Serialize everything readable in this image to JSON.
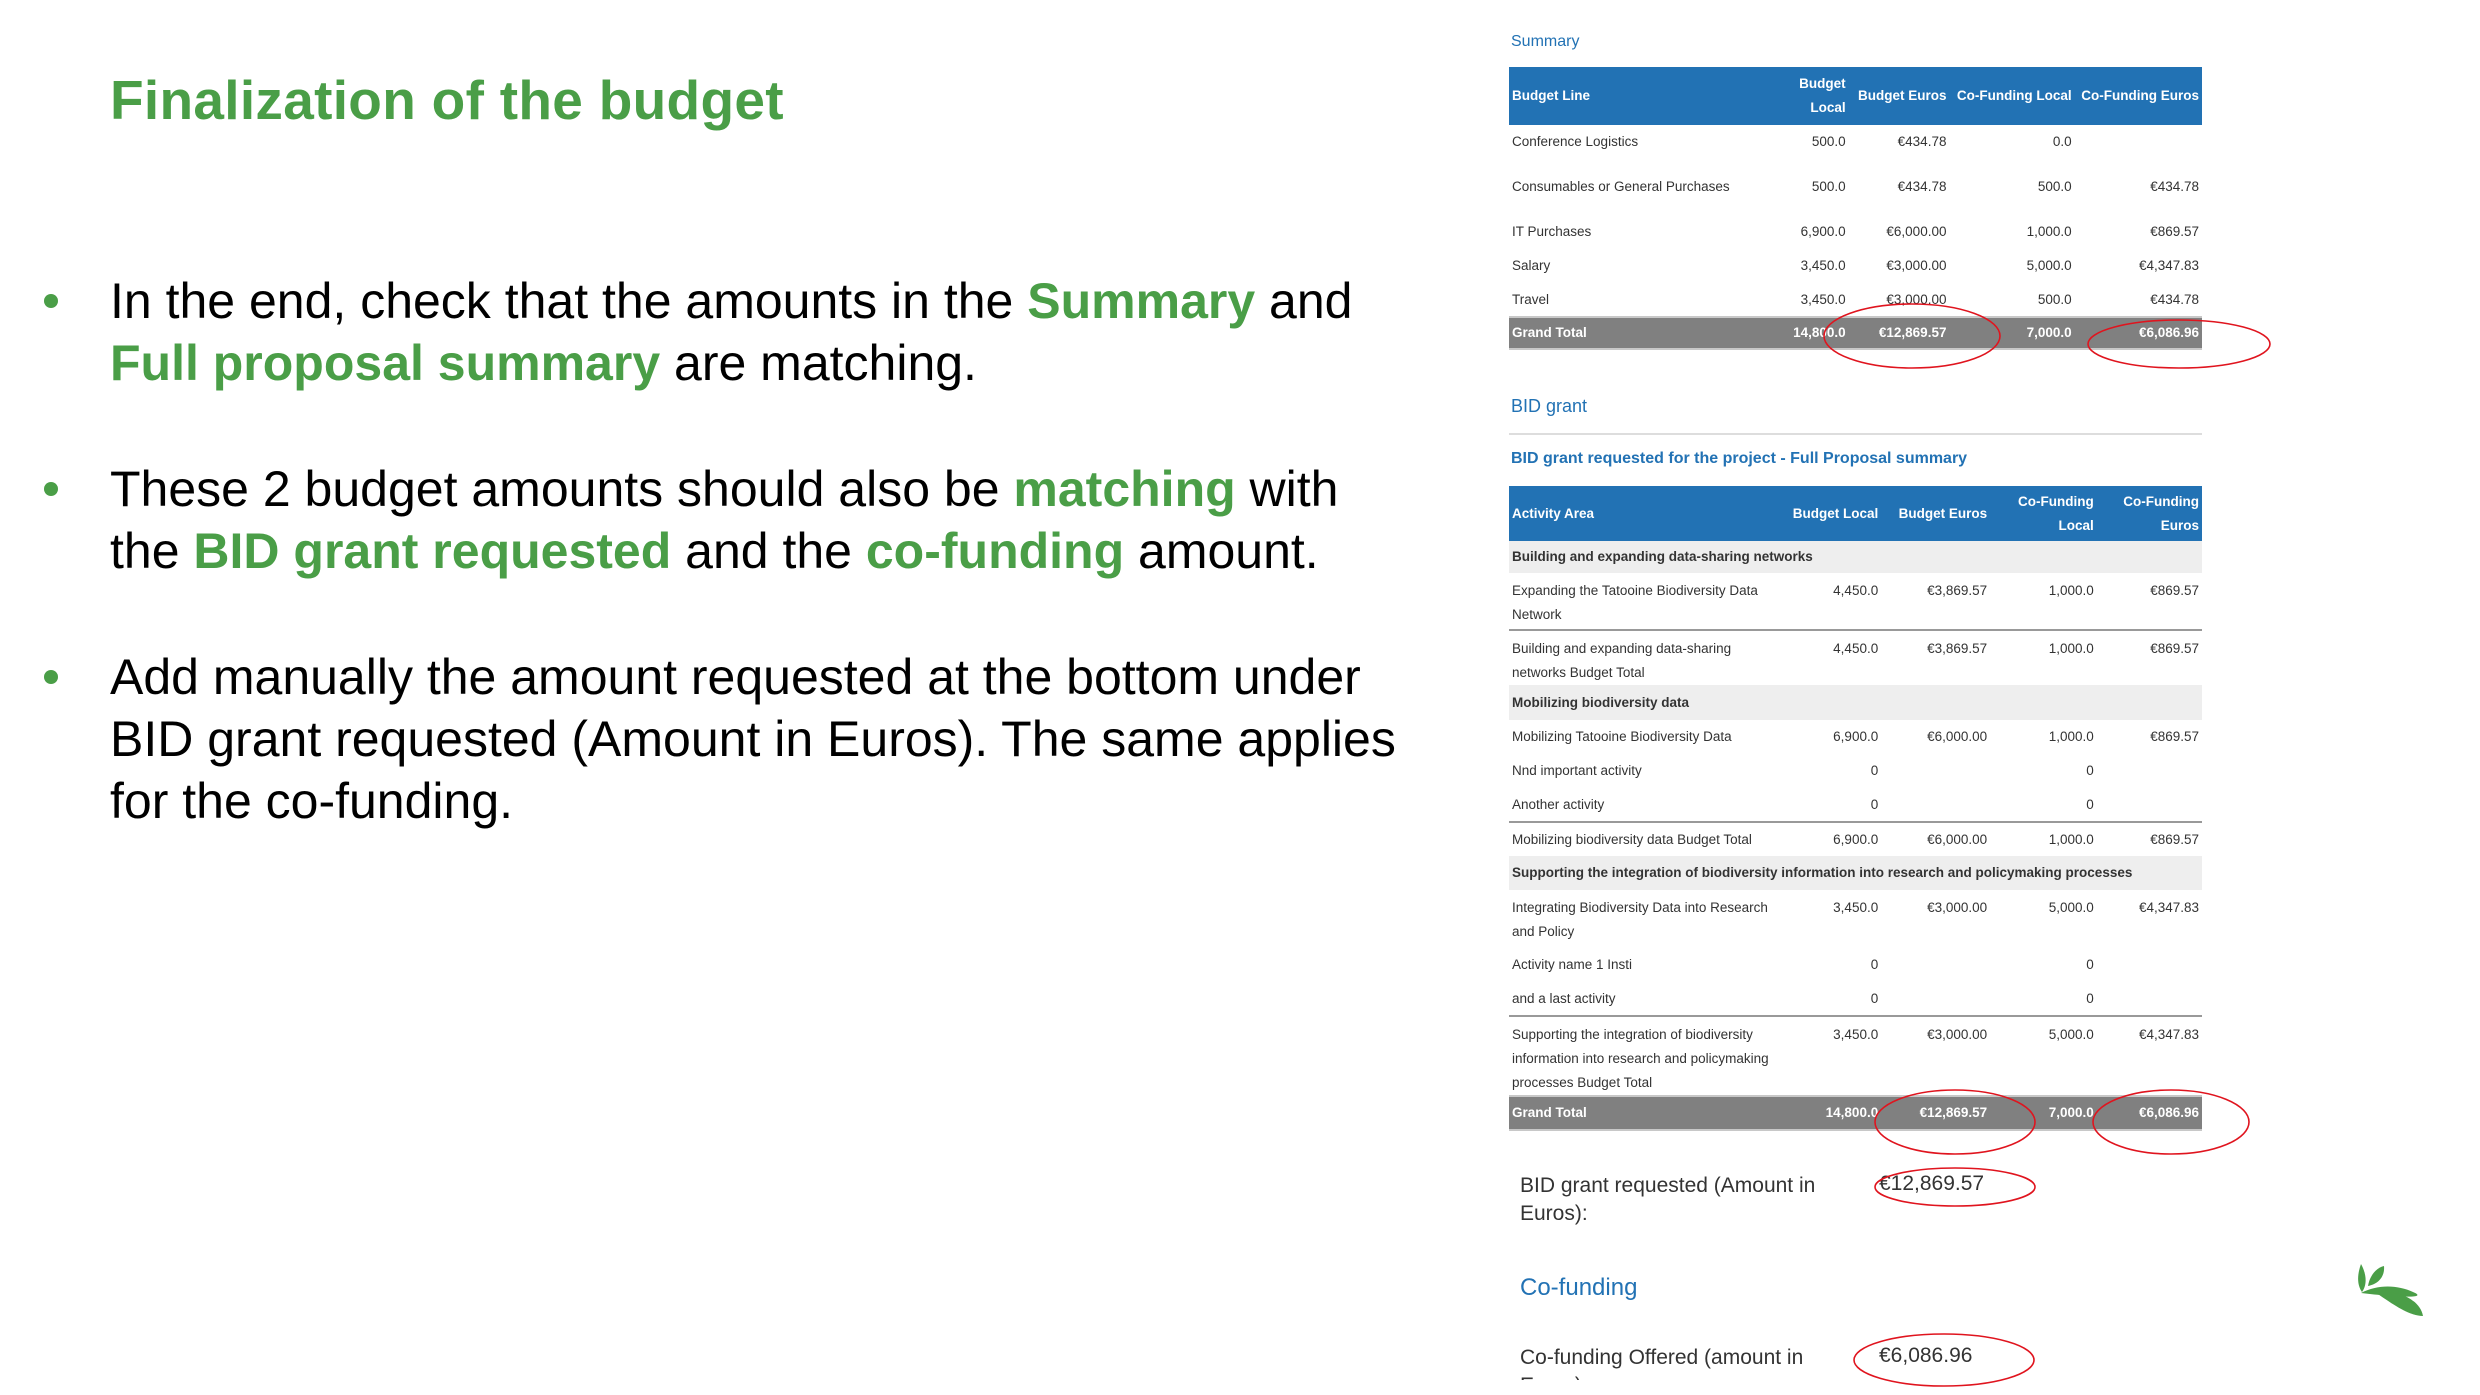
{
  "slide": {
    "title": "Finalization of the budget",
    "bullets": [
      [
        {
          "t": "In the end, check that the amounts in the "
        },
        {
          "t": "Summary",
          "em": true
        },
        {
          "t": " and "
        },
        {
          "t": "Full proposal summary",
          "em": true
        },
        {
          "t": " are matching."
        }
      ],
      [
        {
          "t": "These 2 budget amounts should also be "
        },
        {
          "t": "matching",
          "em": true
        },
        {
          "t": " with the "
        },
        {
          "t": "BID grant requested",
          "em": true
        },
        {
          "t": " and the "
        },
        {
          "t": "co-funding",
          "em": true
        },
        {
          "t": " amount."
        }
      ],
      [
        {
          "t": "Add manually the amount requested at the bottom under BID grant requested (Amount in Euros). The same applies for the co-funding."
        }
      ]
    ],
    "accent_color": "#4a9e47",
    "logo_icon": "gbif-leaf-logo"
  },
  "summary": {
    "heading": "Summary",
    "headers": [
      "Budget Line",
      "Budget Local",
      "Budget Euros",
      "Co-Funding Local",
      "Co-Funding Euros"
    ],
    "rows": [
      [
        "Conference Logistics",
        "500.0",
        "€434.78",
        "0.0",
        ""
      ],
      [
        "Consumables or General Purchases",
        "500.0",
        "€434.78",
        "500.0",
        "€434.78"
      ],
      [
        "IT Purchases",
        "6,900.0",
        "€6,000.00",
        "1,000.0",
        "€869.57"
      ],
      [
        "Salary",
        "3,450.0",
        "€3,000.00",
        "5,000.0",
        "€4,347.83"
      ],
      [
        "Travel",
        "3,450.0",
        "€3,000.00",
        "500.0",
        "€434.78"
      ]
    ],
    "grand_total": [
      "Grand Total",
      "14,800.0",
      "€12,869.57",
      "7,000.0",
      "€6,086.96"
    ]
  },
  "bid_grant": {
    "heading": "BID grant",
    "subheading": "BID grant requested for the project - Full Proposal summary",
    "headers": [
      "Activity Area",
      "Budget Local",
      "Budget Euros",
      "Co-Funding Local",
      "Co-Funding Euros"
    ],
    "rows": [
      {
        "type": "cat",
        "cells": [
          "Building and expanding data-sharing networks"
        ]
      },
      {
        "type": "row",
        "sep": true,
        "cells": [
          "Expanding the Tatooine Biodiversity Data Network",
          "4,450.0",
          "€3,869.57",
          "1,000.0",
          "€869.57"
        ]
      },
      {
        "type": "row",
        "cells": [
          "Building and expanding data-sharing networks Budget Total",
          "4,450.0",
          "€3,869.57",
          "1,000.0",
          "€869.57"
        ]
      },
      {
        "type": "cat",
        "cells": [
          "Mobilizing biodiversity data"
        ]
      },
      {
        "type": "row",
        "cells": [
          "Mobilizing Tatooine Biodiversity Data",
          "6,900.0",
          "€6,000.00",
          "1,000.0",
          "€869.57"
        ]
      },
      {
        "type": "row",
        "cells": [
          "Nnd important activity",
          "0",
          "",
          "0",
          ""
        ]
      },
      {
        "type": "row",
        "sep": true,
        "cells": [
          "Another activity",
          "0",
          "",
          "0",
          ""
        ]
      },
      {
        "type": "row",
        "cells": [
          "Mobilizing biodiversity data Budget Total",
          "6,900.0",
          "€6,000.00",
          "1,000.0",
          "€869.57"
        ]
      },
      {
        "type": "cat",
        "cells": [
          "Supporting the integration of biodiversity information into research and policymaking processes"
        ]
      },
      {
        "type": "row",
        "cells": [
          "Integrating Biodiversity Data into Research and Policy",
          "3,450.0",
          "€3,000.00",
          "5,000.0",
          "€4,347.83"
        ]
      },
      {
        "type": "row",
        "cells": [
          "Activity name 1 Insti",
          "0",
          "",
          "0",
          ""
        ]
      },
      {
        "type": "row",
        "sep": true,
        "cells": [
          "and a last activity",
          "0",
          "",
          "0",
          ""
        ]
      },
      {
        "type": "row",
        "cells": [
          "Supporting the integration of biodiversity information into research and policymaking processes Budget Total",
          "3,450.0",
          "€3,000.00",
          "5,000.0",
          "€4,347.83"
        ]
      },
      {
        "type": "grand",
        "cells": [
          "Grand Total",
          "14,800.0",
          "€12,869.57",
          "7,000.0",
          "€6,086.96"
        ]
      }
    ],
    "requested_label": "BID grant requested (Amount in Euros):",
    "requested_value": "€12,869.57"
  },
  "cofunding": {
    "heading": "Co-funding",
    "offered_label": "Co-funding Offered (amount in Euros):",
    "offered_value": "€6,086.96"
  },
  "colors": {
    "header_blue": "#2272b4",
    "grand_total_gray": "#808080",
    "highlight_red": "#e0141e"
  }
}
